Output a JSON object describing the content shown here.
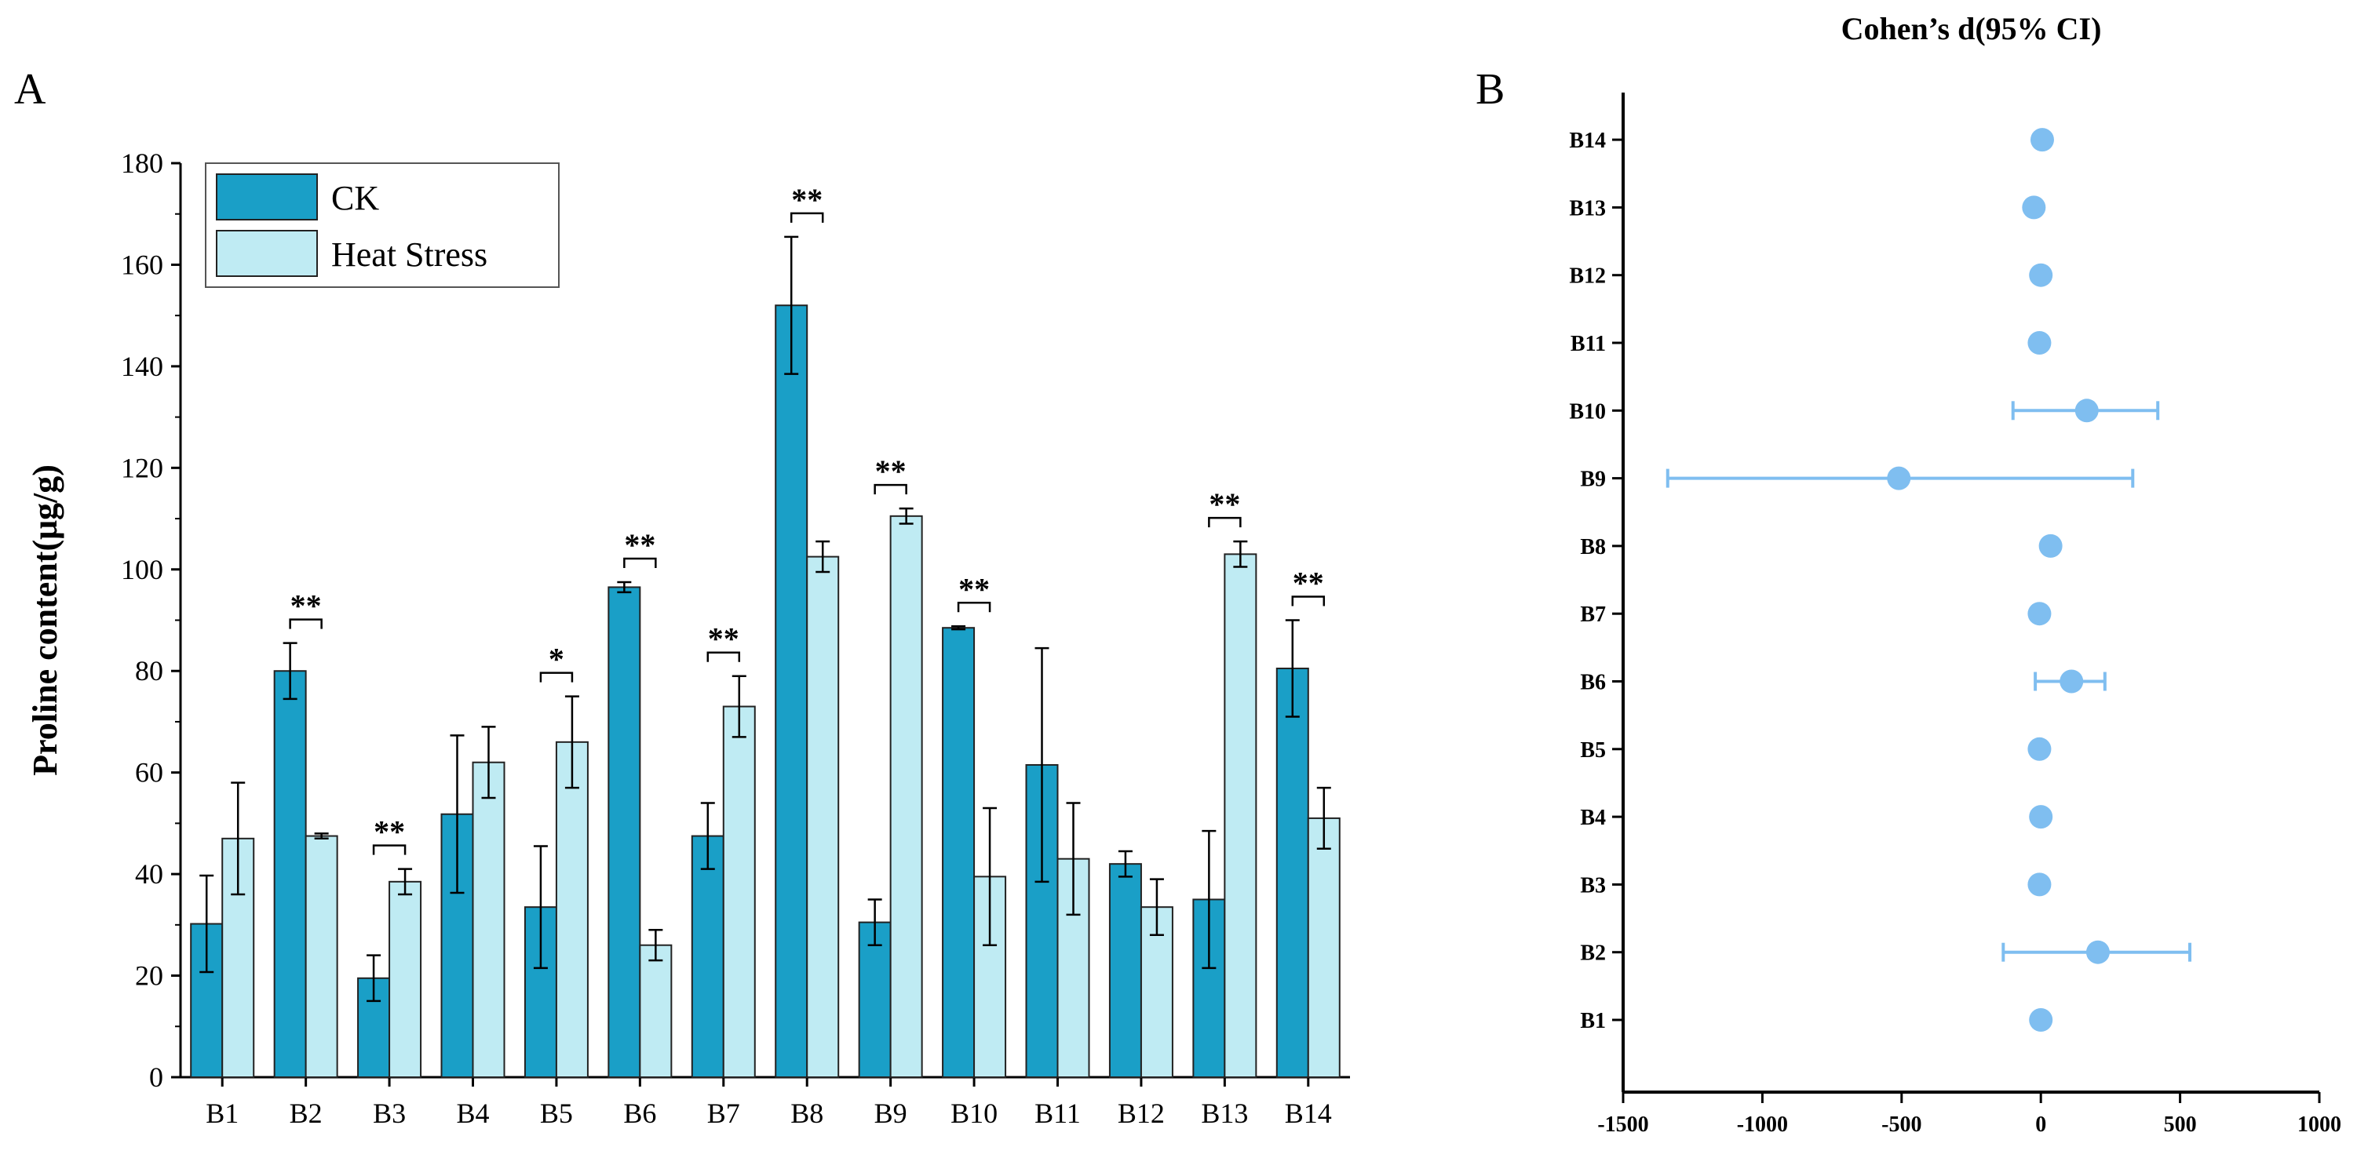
{
  "panel_a_label": "A",
  "panel_b_label": "B",
  "chart_data": [
    {
      "type": "bar",
      "panel": "A",
      "categories": [
        "B1",
        "B2",
        "B3",
        "B4",
        "B5",
        "B6",
        "B7",
        "B8",
        "B9",
        "B10",
        "B11",
        "B12",
        "B13",
        "B14"
      ],
      "series": [
        {
          "name": "CK",
          "color": "#1a9fc7",
          "values": [
            30.2,
            80.0,
            19.5,
            51.8,
            33.5,
            96.5,
            47.5,
            152.0,
            30.5,
            88.5,
            61.5,
            42.0,
            35.0,
            80.5
          ],
          "errors": [
            9.5,
            5.5,
            4.5,
            15.5,
            12.0,
            1.0,
            6.5,
            13.5,
            4.5,
            0.3,
            23.0,
            2.5,
            13.5,
            9.5
          ]
        },
        {
          "name": "Heat Stress",
          "color": "#bfebf3",
          "values": [
            47.0,
            47.5,
            38.5,
            62.0,
            66.0,
            26.0,
            73.0,
            102.5,
            110.5,
            39.5,
            43.0,
            33.5,
            103.0,
            51.0
          ],
          "errors": [
            11.0,
            0.5,
            2.5,
            7.0,
            9.0,
            3.0,
            6.0,
            3.0,
            1.5,
            13.5,
            11.0,
            5.5,
            2.5,
            6.0
          ]
        }
      ],
      "significance": [
        "",
        "**",
        "**",
        "",
        "*",
        "**",
        "**",
        "**",
        "**",
        "**",
        "",
        "",
        "**",
        "**"
      ],
      "title": "",
      "xlabel": "",
      "ylabel": "Proline content(μg/g)",
      "ylim": [
        0,
        180
      ],
      "yticks": [
        0,
        20,
        40,
        60,
        80,
        100,
        120,
        140,
        160,
        180
      ],
      "legend_position": "top-left"
    },
    {
      "type": "scatter",
      "panel": "B",
      "title": "Cohen’s d(95% CI)",
      "color": "#7fbef0",
      "categories": [
        "B1",
        "B2",
        "B3",
        "B4",
        "B5",
        "B6",
        "B7",
        "B8",
        "B9",
        "B10",
        "B11",
        "B12",
        "B13",
        "B14"
      ],
      "values": [
        0,
        205,
        -5,
        0,
        -5,
        110,
        -5,
        35,
        -510,
        165,
        -5,
        0,
        -25,
        5
      ],
      "ci_low": [
        0,
        -135,
        -5,
        0,
        -5,
        -20,
        -5,
        15,
        -1340,
        -100,
        -5,
        0,
        -40,
        5
      ],
      "ci_high": [
        0,
        535,
        -5,
        0,
        -5,
        230,
        -5,
        55,
        330,
        420,
        -5,
        0,
        -10,
        5
      ],
      "xlim": [
        -1500,
        1000
      ],
      "xticks": [
        -1500,
        -1000,
        -500,
        0,
        500,
        1000
      ],
      "xlabel": "",
      "ylabel": ""
    }
  ]
}
